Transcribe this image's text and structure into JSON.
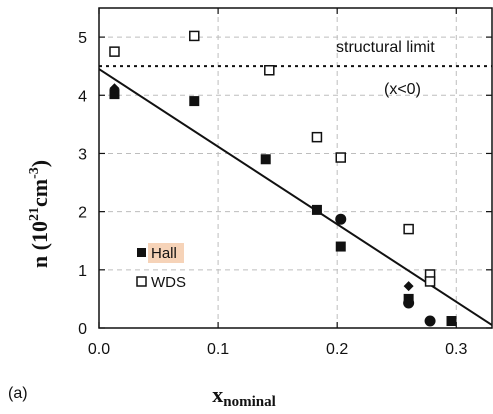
{
  "chart_data": {
    "type": "scatter",
    "panel_label": "(a)",
    "xlabel_main": "x",
    "xlabel_sub": "nominal",
    "ylabel_main": "n (10",
    "ylabel_sup1": "21",
    "ylabel_mid": "cm",
    "ylabel_sup2": "-3",
    "ylabel_end": ")",
    "xlim": [
      0.0,
      0.33
    ],
    "ylim": [
      0,
      5.5
    ],
    "x_ticks": [
      0.0,
      0.1,
      0.2,
      0.3
    ],
    "x_tick_labels": [
      "0.0",
      "0.1",
      "0.2",
      "0.3"
    ],
    "y_ticks": [
      0,
      1,
      2,
      3,
      4,
      5
    ],
    "y_tick_labels": [
      "0",
      "1",
      "2",
      "3",
      "4",
      "5"
    ],
    "grid": true,
    "structural_limit": {
      "y": 4.5,
      "label": "structural limit",
      "sublabel": "(x<0)"
    },
    "fit_line": {
      "x": [
        0.0,
        0.33
      ],
      "y": [
        4.45,
        0.05
      ]
    },
    "legend": [
      {
        "label": "Hall",
        "marker": "filled-square",
        "highlight": "#f6d3b8"
      },
      {
        "label": "WDS",
        "marker": "open-square"
      }
    ],
    "series": [
      {
        "name": "Hall",
        "marker": "filled-square",
        "points": [
          [
            0.013,
            4.02
          ],
          [
            0.08,
            3.9
          ],
          [
            0.14,
            2.9
          ],
          [
            0.183,
            2.03
          ],
          [
            0.203,
            1.4
          ],
          [
            0.26,
            0.5
          ],
          [
            0.296,
            0.12
          ]
        ]
      },
      {
        "name": "WDS",
        "marker": "open-square",
        "points": [
          [
            0.013,
            4.75
          ],
          [
            0.08,
            5.02
          ],
          [
            0.143,
            4.43
          ],
          [
            0.183,
            3.28
          ],
          [
            0.203,
            2.93
          ],
          [
            0.26,
            1.7
          ],
          [
            0.278,
            0.92
          ],
          [
            0.278,
            0.8
          ]
        ]
      },
      {
        "marker": "filled-circle",
        "points": [
          [
            0.203,
            1.87
          ],
          [
            0.26,
            0.43
          ],
          [
            0.278,
            0.12
          ]
        ]
      },
      {
        "marker": "filled-diamond",
        "points": [
          [
            0.013,
            4.12
          ],
          [
            0.26,
            0.72
          ]
        ]
      }
    ]
  }
}
